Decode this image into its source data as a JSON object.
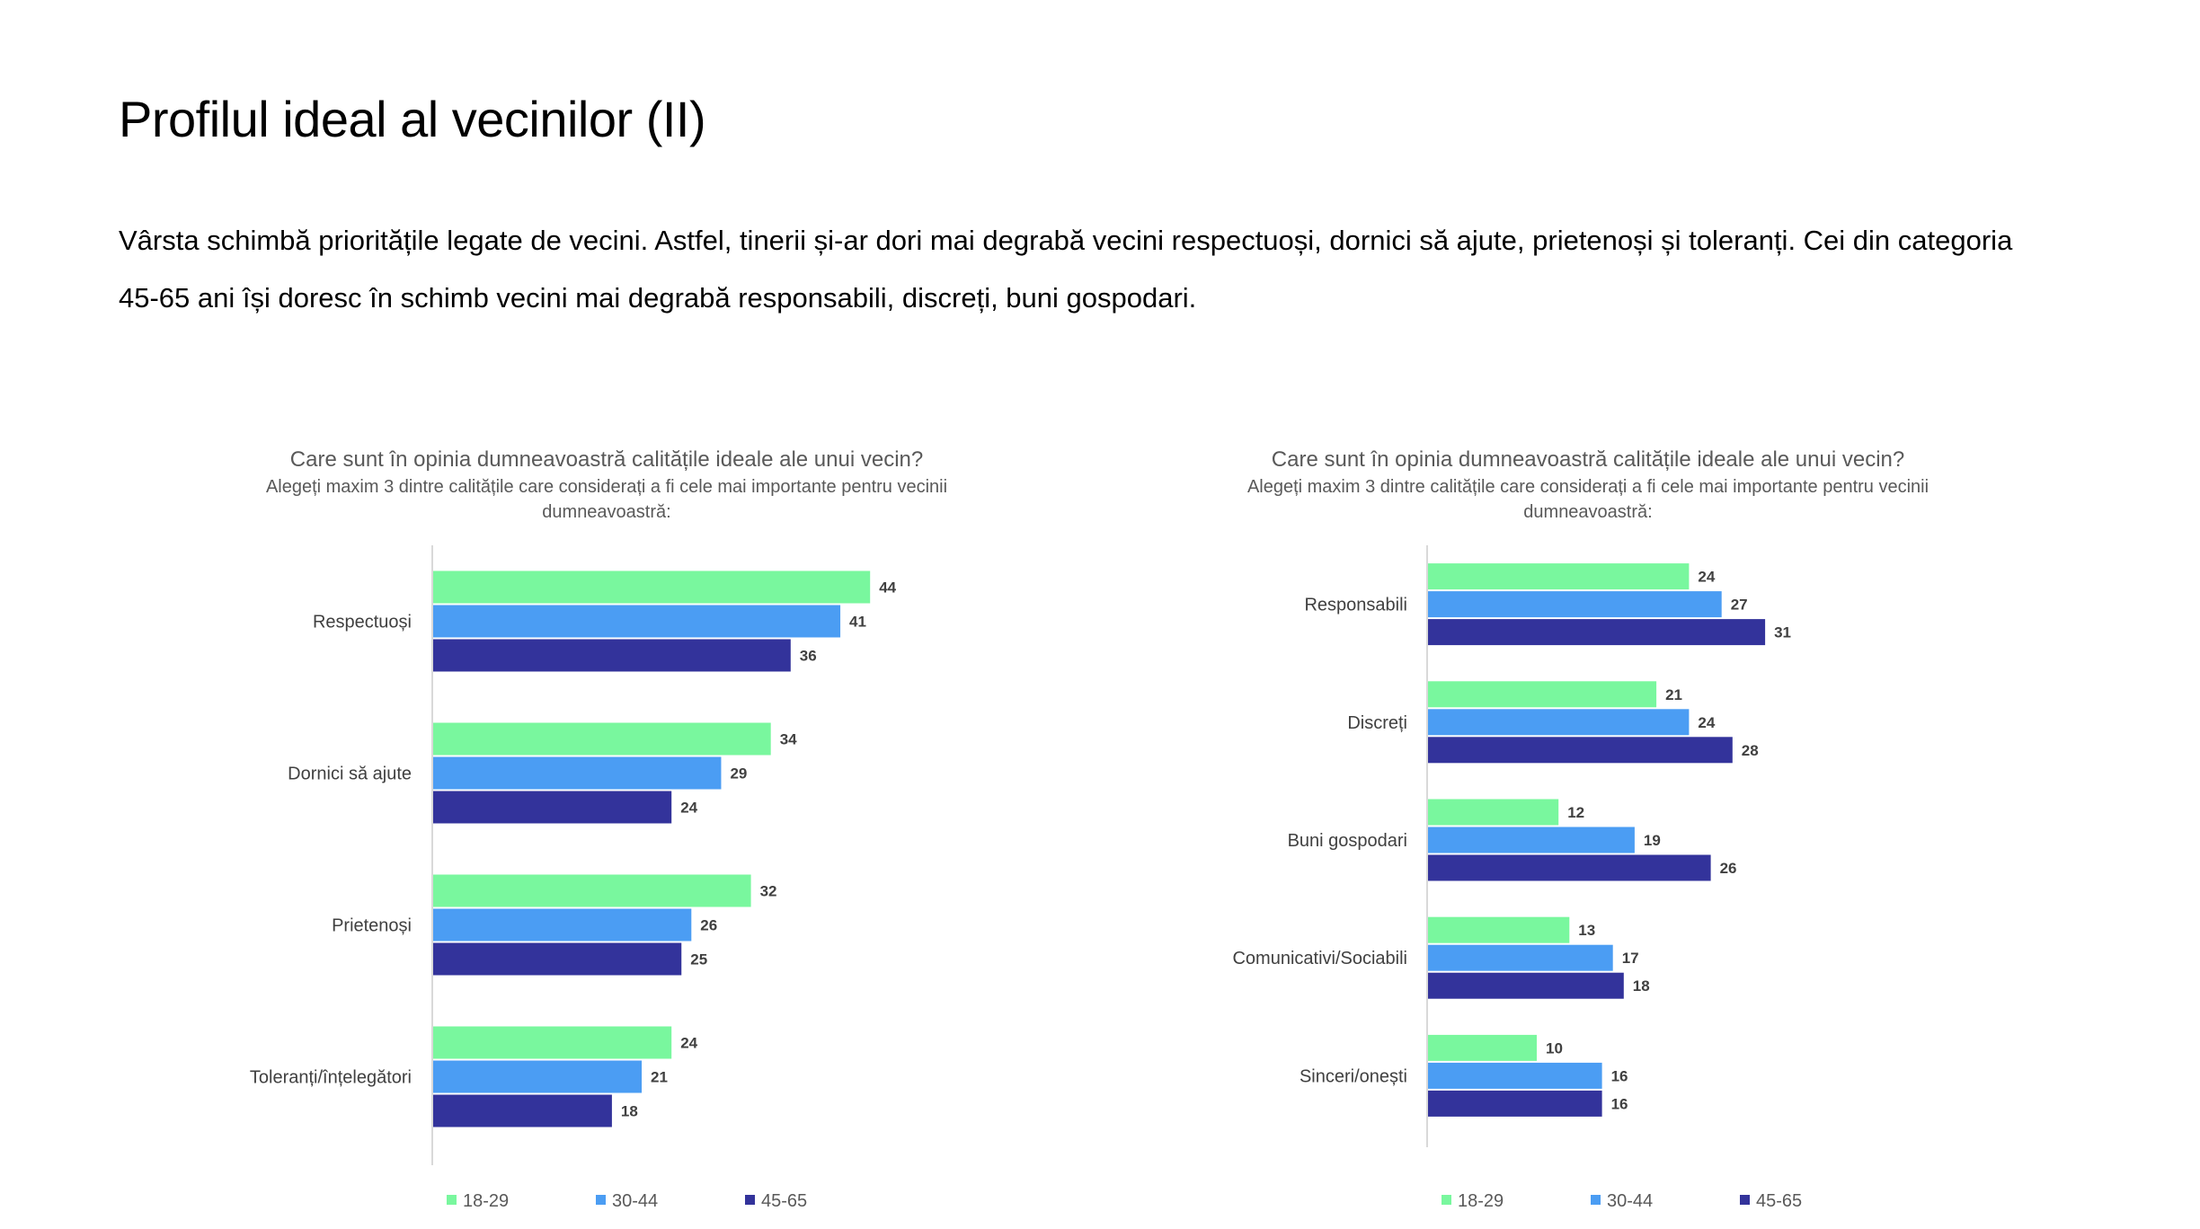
{
  "slide": {
    "title": "Profilul ideal al vecinilor (II)",
    "text": "Vârsta schimbă prioritățile legate de vecini. Astfel, tinerii și-ar dori mai degrabă vecini respectuoși, dornici să ajute, prietenoși și toleranți. Cei din categoria 45-65 ani își doresc în schimb vecini mai degrabă responsabili, discreți, buni gospodari."
  },
  "colors": {
    "18-29": "#79F79E",
    "30-44": "#4B9DF3",
    "45-65": "#33339B",
    "axis": "#D9D9D9"
  },
  "chart_data": [
    {
      "type": "bar",
      "orientation": "horizontal",
      "title": "Care sunt în opinia dumneavoastră calitățile ideale ale unui vecin?",
      "subtitle_lines": [
        "Alegeți maxim 3 dintre calitățile care considerați a fi cele mai importante pentru vecinii",
        "dumneavoastră:"
      ],
      "categories": [
        "Respectuoși",
        "Dornici să ajute",
        "Prietenoși",
        "Toleranți/înțelegători"
      ],
      "series": [
        {
          "name": "18-29",
          "values": [
            44,
            34,
            32,
            24
          ]
        },
        {
          "name": "30-44",
          "values": [
            41,
            29,
            26,
            21
          ]
        },
        {
          "name": "45-65",
          "values": [
            36,
            24,
            25,
            18
          ]
        }
      ],
      "xlim": [
        0,
        50
      ],
      "grid": false,
      "legend": "bottom"
    },
    {
      "type": "bar",
      "orientation": "horizontal",
      "title": "Care sunt în opinia dumneavoastră calitățile ideale ale unui vecin?",
      "subtitle_lines": [
        "Alegeți maxim 3 dintre calitățile care considerați a fi cele mai importante pentru vecinii",
        "dumneavoastră:"
      ],
      "categories": [
        "Responsabili",
        "Discreți",
        "Buni gospodari",
        "Comunicativi/Sociabili",
        "Sinceri/onești"
      ],
      "series": [
        {
          "name": "18-29",
          "values": [
            24,
            21,
            12,
            13,
            10
          ]
        },
        {
          "name": "30-44",
          "values": [
            27,
            24,
            19,
            17,
            16
          ]
        },
        {
          "name": "45-65",
          "values": [
            31,
            28,
            26,
            18,
            16
          ]
        }
      ],
      "xlim": [
        0,
        50
      ],
      "grid": false,
      "legend": "bottom"
    }
  ]
}
